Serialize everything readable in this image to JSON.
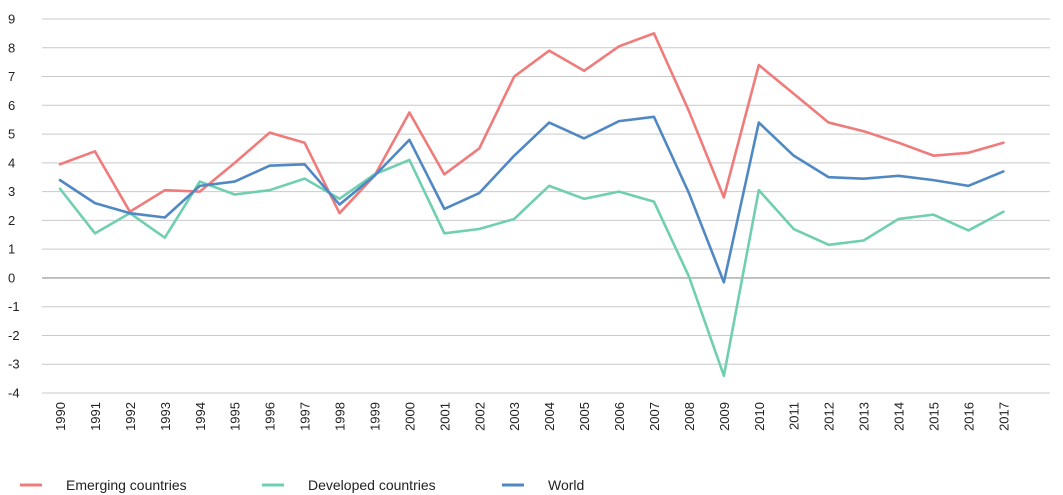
{
  "chart_data": {
    "type": "line",
    "x": [
      "1990",
      "1991",
      "1992",
      "1993",
      "1994",
      "1995",
      "1996",
      "1997",
      "1998",
      "1999",
      "2000",
      "2001",
      "2002",
      "2003",
      "2004",
      "2005",
      "2006",
      "2007",
      "2008",
      "2009",
      "2010",
      "2011",
      "2012",
      "2013",
      "2014",
      "2015",
      "2016",
      "2017"
    ],
    "ylim": [
      -4,
      9
    ],
    "yticks": [
      "9",
      "8",
      "7",
      "6",
      "5",
      "4",
      "3",
      "2",
      "1",
      "0",
      "-1",
      "-2",
      "-3",
      "-4"
    ],
    "grid": true,
    "legend_position": "bottom-left",
    "series": [
      {
        "name": "Emerging countries",
        "color": "#f07b7b",
        "values": [
          3.95,
          4.4,
          2.3,
          3.05,
          3.0,
          4.0,
          5.05,
          4.7,
          2.25,
          3.55,
          5.75,
          3.6,
          4.5,
          7.0,
          7.9,
          7.2,
          8.05,
          8.5,
          5.8,
          2.8,
          7.4,
          6.4,
          5.4,
          5.1,
          4.7,
          4.25,
          4.35,
          4.7
        ]
      },
      {
        "name": "Developed countries",
        "color": "#6fcfb0",
        "values": [
          3.1,
          1.55,
          2.25,
          1.4,
          3.35,
          2.9,
          3.05,
          3.45,
          2.75,
          3.6,
          4.1,
          1.55,
          1.7,
          2.05,
          3.2,
          2.75,
          3.0,
          2.65,
          0.05,
          -3.4,
          3.05,
          1.7,
          1.15,
          1.3,
          2.05,
          2.2,
          1.65,
          2.3
        ]
      },
      {
        "name": "World",
        "color": "#5088c4",
        "values": [
          3.4,
          2.6,
          2.25,
          2.1,
          3.2,
          3.35,
          3.9,
          3.95,
          2.55,
          3.55,
          4.8,
          2.4,
          2.95,
          4.25,
          5.4,
          4.85,
          5.45,
          5.6,
          2.95,
          -0.15,
          5.4,
          4.25,
          3.5,
          3.45,
          3.55,
          3.4,
          3.2,
          3.7
        ]
      }
    ]
  }
}
